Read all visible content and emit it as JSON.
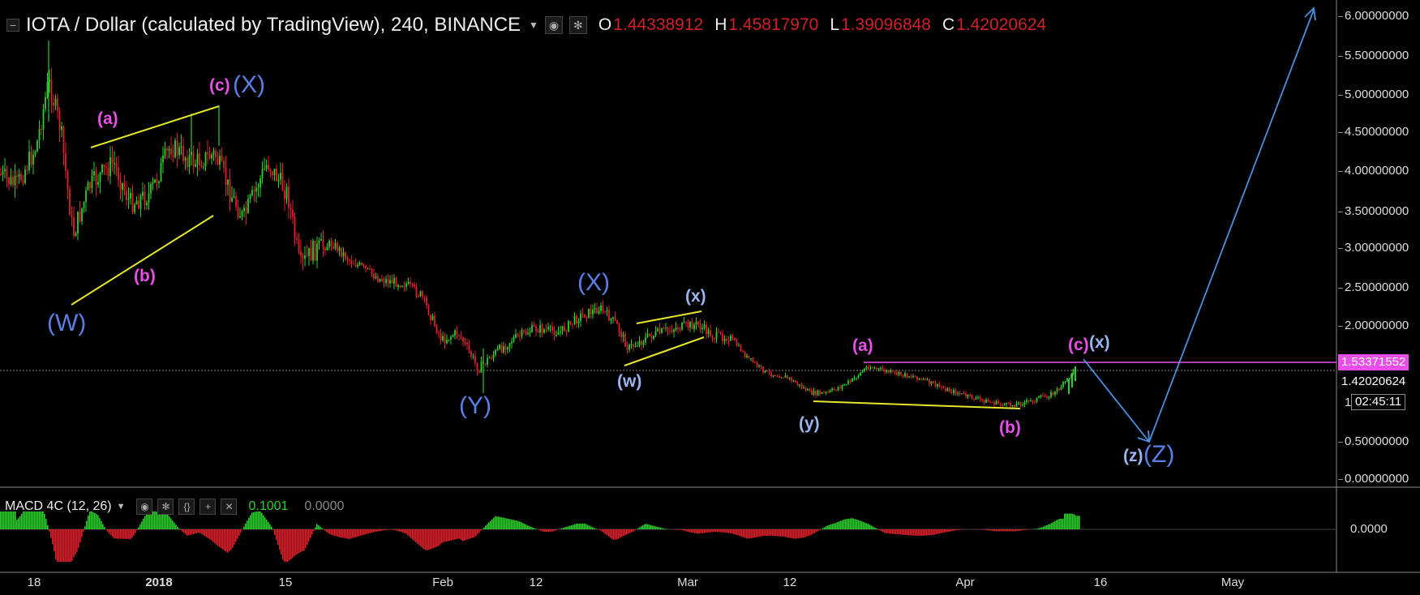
{
  "header": {
    "title": "IOTA / Dollar (calculated by TradingView), 240, BINANCE",
    "ohlc": [
      {
        "key": "O",
        "value": "1.44338912"
      },
      {
        "key": "H",
        "value": "1.45817970"
      },
      {
        "key": "L",
        "value": "1.39096848"
      },
      {
        "key": "C",
        "value": "1.42020624"
      }
    ]
  },
  "price_axis": {
    "ticks": [
      "6.00000000",
      "5.50000000",
      "5.00000000",
      "4.50000000",
      "4.00000000",
      "3.50000000",
      "3.00000000",
      "2.50000000",
      "2.00000000",
      "1.00000000",
      "0.50000000",
      "0.00000000"
    ],
    "tag_pink": "1.53371552",
    "tag_last": "1.42020624",
    "countdown": "02:45:11",
    "countdown_prefix": "1."
  },
  "time_axis": {
    "labels": [
      "18",
      "2018",
      "15",
      "Feb",
      "12",
      "Mar",
      "12",
      "Apr",
      "16",
      "May"
    ]
  },
  "waves": {
    "W_big": "(W)",
    "a1": "(a)",
    "b1": "(b)",
    "c1": "(c)",
    "X1_big": "(X)",
    "Y_big": "(Y)",
    "X2_big": "(X)",
    "w_small": "(w)",
    "x_small": "(x)",
    "y_small": "(y)",
    "a2": "(a)",
    "b2": "(b)",
    "c2": "(c)",
    "x2_small": "(x)",
    "z_small": "(z)",
    "Z_big": "(Z)"
  },
  "macd": {
    "title": "MACD 4C (12, 26)",
    "value": "0.1001",
    "signal": "0.0000",
    "axis_label": "0.0000"
  },
  "colors": {
    "up": "#2bd12b",
    "down": "#e0202a",
    "trend": "#e6e62a",
    "projection": "#4a90e2",
    "magenta": "#e84fe8",
    "blue_wave": "#5a7fe6",
    "lightblue_wave": "#9ab4f0",
    "price_red": "#d0202a"
  },
  "icons": {
    "collapse": "minus-square-icon",
    "eye": "eye-icon",
    "settings": "gear-icon",
    "source": "braces-icon",
    "add": "plus-icon",
    "close": "close-icon"
  }
}
